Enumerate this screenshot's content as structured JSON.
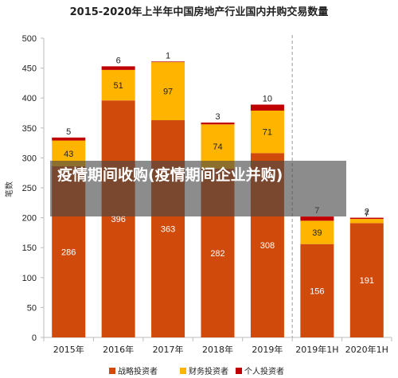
{
  "overlay_caption": "疫情期间收购(疫情期间企业并购)",
  "chart_data": {
    "type": "bar",
    "stacked": true,
    "title": "2015-2020年上半年中国房地产行业国内并购交易数量",
    "ylabel": "笔数",
    "xlabel": "",
    "ylim": [
      0,
      500
    ],
    "yticks": [
      0,
      50,
      100,
      150,
      200,
      250,
      300,
      350,
      400,
      450,
      500
    ],
    "grid": false,
    "legend_position": "bottom",
    "categories": [
      "2015年",
      "2016年",
      "2017年",
      "2018年",
      "2019年",
      "2019年1H",
      "2020年1H"
    ],
    "series": [
      {
        "name": "战略投资者",
        "color": "#d04a0c",
        "values": [
          286,
          396,
          363,
          282,
          308,
          156,
          191
        ]
      },
      {
        "name": "财务投资者",
        "color": "#ffb400",
        "values": [
          43,
          51,
          97,
          74,
          71,
          39,
          7
        ]
      },
      {
        "name": "个人投资者",
        "color": "#c00000",
        "values": [
          5,
          6,
          1,
          3,
          10,
          7,
          2
        ]
      }
    ]
  }
}
